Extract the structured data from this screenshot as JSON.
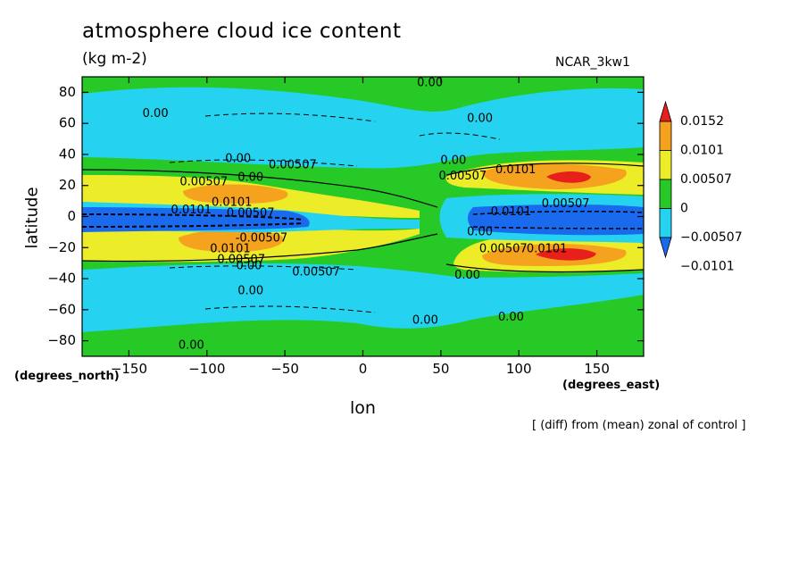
{
  "chart_data": {
    "type": "heatmap",
    "title": "atmosphere cloud ice content",
    "units": "(kg m-2)",
    "model": "NCAR_3kw1",
    "xlabel": "lon",
    "ylabel": "latitude",
    "xunit": "(degrees_east)",
    "yunit": "(degrees_north)",
    "note": "[ (diff) from (mean) zonal of control ]",
    "xlim": [
      -180,
      180
    ],
    "ylim": [
      -90,
      90
    ],
    "x_ticks": [
      -150,
      -100,
      -50,
      0,
      50,
      100,
      150
    ],
    "y_ticks": [
      -80,
      -60,
      -40,
      -20,
      0,
      20,
      40,
      60,
      80
    ],
    "levels": [
      -0.0101,
      -0.00507,
      0,
      0.00507,
      0.0101,
      0.0152
    ],
    "colorbar": [
      {
        "label": "0.0152",
        "color": "#e8201c"
      },
      {
        "label": "0.0101",
        "color": "#f5a21f"
      },
      {
        "label": "0.00507",
        "color": "#ecec28"
      },
      {
        "label": "0",
        "color": "#27c927"
      },
      {
        "label": "-0.00507",
        "color": "#25d3f0"
      },
      {
        "label": "-0.0101",
        "color": "#1a6aee"
      }
    ],
    "contour_labels": [
      {
        "text": "0.00",
        "lon": 43,
        "lat": 86
      },
      {
        "text": "0.00",
        "lon": -133,
        "lat": 66
      },
      {
        "text": "0.00",
        "lon": 75,
        "lat": 63
      },
      {
        "text": "0.00",
        "lon": -80,
        "lat": 37
      },
      {
        "text": "0.00507",
        "lon": -45,
        "lat": 33
      },
      {
        "text": "0.00",
        "lon": 58,
        "lat": 36
      },
      {
        "text": "0.00507",
        "lon": 64,
        "lat": 26
      },
      {
        "text": "0.0101",
        "lon": 98,
        "lat": 30
      },
      {
        "text": "0.00507",
        "lon": -102,
        "lat": 22
      },
      {
        "text": "0.00",
        "lon": -72,
        "lat": 25
      },
      {
        "text": "0.0101",
        "lon": -84,
        "lat": 9
      },
      {
        "text": "0.0101",
        "lon": -110,
        "lat": 4
      },
      {
        "text": "0.00507",
        "lon": -72,
        "lat": 2
      },
      {
        "text": "0.0101",
        "lon": 95,
        "lat": 3
      },
      {
        "text": "0.00507",
        "lon": 130,
        "lat": 8
      },
      {
        "text": "-0.00507",
        "lon": -65,
        "lat": -14
      },
      {
        "text": "0.0101",
        "lon": -85,
        "lat": -21
      },
      {
        "text": "0.00507",
        "lon": -78,
        "lat": -28
      },
      {
        "text": "0.00",
        "lon": 75,
        "lat": -10
      },
      {
        "text": "0.00507",
        "lon": 90,
        "lat": -21
      },
      {
        "text": "0.0101",
        "lon": 118,
        "lat": -21
      },
      {
        "text": "0.00",
        "lon": -73,
        "lat": -32
      },
      {
        "text": "0.00507",
        "lon": -30,
        "lat": -36
      },
      {
        "text": "0.00",
        "lon": 67,
        "lat": -38
      },
      {
        "text": "0.00",
        "lon": -72,
        "lat": -48
      },
      {
        "text": "0.00",
        "lon": 40,
        "lat": -67
      },
      {
        "text": "0.00",
        "lon": 95,
        "lat": -65
      },
      {
        "text": "0.00",
        "lon": -110,
        "lat": -83
      }
    ]
  }
}
